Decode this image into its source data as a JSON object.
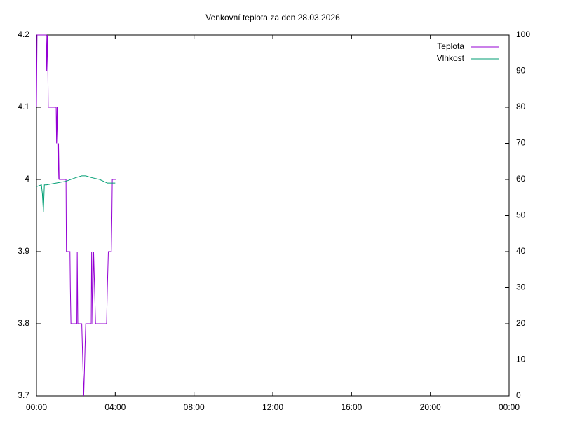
{
  "chart_data": {
    "type": "line",
    "title": "Venkovní teplota za den 28.03.2026",
    "xlim": [
      0,
      24
    ],
    "xticks": [
      {
        "value": 0,
        "label": "00:00"
      },
      {
        "value": 4,
        "label": "04:00"
      },
      {
        "value": 8,
        "label": "08:00"
      },
      {
        "value": 12,
        "label": "12:00"
      },
      {
        "value": 16,
        "label": "16:00"
      },
      {
        "value": 20,
        "label": "20:00"
      },
      {
        "value": 24,
        "label": "00:00"
      }
    ],
    "ylim": [
      3.7,
      4.2
    ],
    "yticks": [
      3.7,
      3.8,
      3.9,
      4,
      4.1,
      4.2
    ],
    "y2lim": [
      0,
      100
    ],
    "y2ticks": [
      0,
      10,
      20,
      30,
      40,
      50,
      60,
      70,
      80,
      90,
      100
    ],
    "grid": false,
    "legend": "top-right",
    "series": [
      {
        "name": "Teplota",
        "color": "#9400d3",
        "x": [
          0,
          0.03,
          0.5,
          0.52,
          0.55,
          0.58,
          0.6,
          0.62,
          1.0,
          1.02,
          1.05,
          1.08,
          1.1,
          1.12,
          1.15,
          1.5,
          1.52,
          1.7,
          1.72,
          1.75,
          2.05,
          2.07,
          2.1,
          2.3,
          2.35,
          2.4,
          2.45,
          2.5,
          2.78,
          2.8,
          2.85,
          2.9,
          2.95,
          3.0,
          3.56,
          3.6,
          3.65,
          3.8,
          3.83,
          3.85,
          4.05
        ],
        "values": [
          4.1,
          4.2,
          4.2,
          4.15,
          4.2,
          4.15,
          4.1,
          4.1,
          4.1,
          4.05,
          4.1,
          4.05,
          4.0,
          4.05,
          4.0,
          4.0,
          3.9,
          3.9,
          3.85,
          3.8,
          3.8,
          3.9,
          3.8,
          3.8,
          3.75,
          3.7,
          3.75,
          3.8,
          3.8,
          3.9,
          3.8,
          3.9,
          3.85,
          3.8,
          3.8,
          3.85,
          3.9,
          3.9,
          3.95,
          4.0,
          4.0
        ]
      },
      {
        "name": "Vlhkost",
        "color": "#009e73",
        "axis": "y2",
        "x": [
          0,
          0.25,
          0.3,
          0.35,
          0.4,
          0.5,
          1.0,
          1.5,
          2.0,
          2.3,
          2.5,
          2.8,
          3.2,
          3.6,
          4.0
        ],
        "values": [
          58,
          58.5,
          56,
          51,
          58.5,
          58.5,
          59,
          59.5,
          60.5,
          61,
          61,
          60.5,
          60,
          59,
          59
        ]
      }
    ]
  }
}
